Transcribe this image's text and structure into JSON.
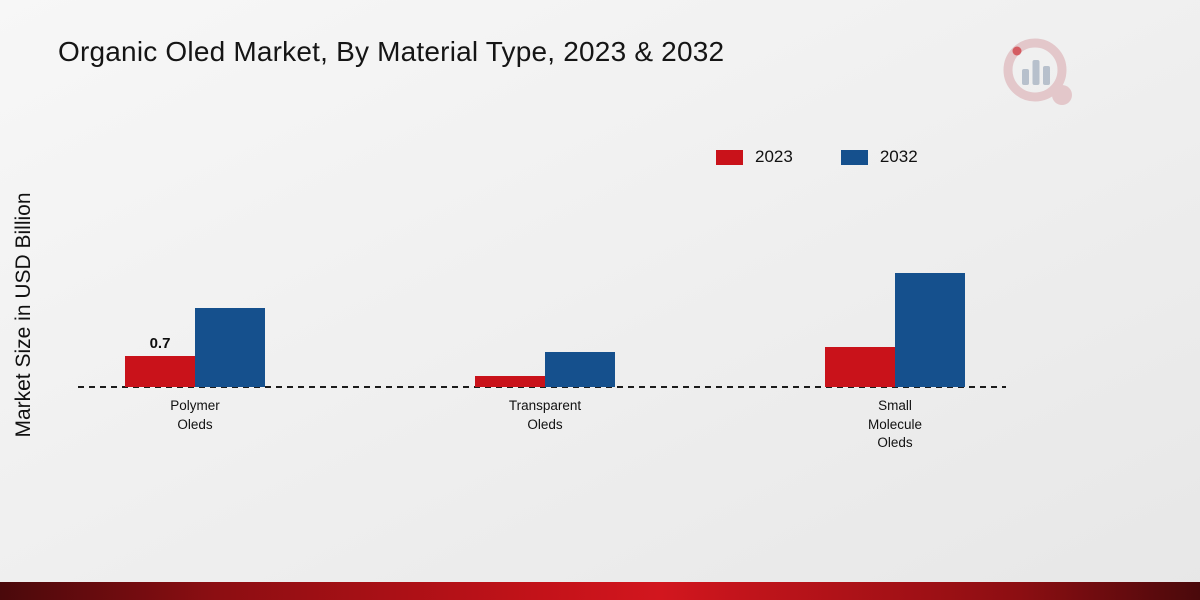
{
  "page": {
    "title": "Organic Oled Market, By Material Type, 2023 & 2032",
    "y_axis_label": "Market Size in USD Billion"
  },
  "chart_data": {
    "type": "bar",
    "title": "Organic Oled Market, By Material Type, 2023 & 2032",
    "ylabel": "Market Size in USD Billion",
    "xlabel": "",
    "categories": [
      "Polymer Oleds",
      "Transparent Oleds",
      "Small Molecule Oleds"
    ],
    "category_label_lines": [
      [
        "Polymer",
        "Oleds"
      ],
      [
        "Transparent",
        "Oleds"
      ],
      [
        "Small",
        "Molecule",
        "Oleds"
      ]
    ],
    "series": [
      {
        "name": "2023",
        "color": "#c9121a",
        "values": [
          0.7,
          0.25,
          0.9
        ]
      },
      {
        "name": "2032",
        "color": "#15508d",
        "values": [
          1.8,
          0.8,
          2.6
        ]
      }
    ],
    "value_labels": [
      {
        "series_index": 0,
        "category_index": 0,
        "text": "0.7"
      }
    ],
    "ylim": [
      0,
      2.8
    ],
    "grid": false,
    "baseline_style": "dashed",
    "legend_position": "top-right"
  },
  "colors": {
    "series_2023": "#c9121a",
    "series_2032": "#15508d",
    "baseline": "#1c1c1c",
    "footer_bar": "#b01015",
    "background_top": "#f7f7f7",
    "background_bottom": "#e7e7e7",
    "text": "#111111"
  }
}
